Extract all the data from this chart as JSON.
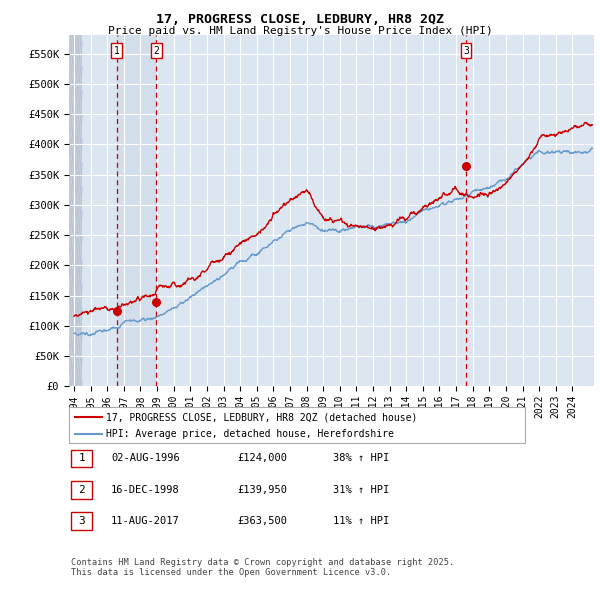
{
  "title": "17, PROGRESS CLOSE, LEDBURY, HR8 2QZ",
  "subtitle": "Price paid vs. HM Land Registry's House Price Index (HPI)",
  "legend_line1": "17, PROGRESS CLOSE, LEDBURY, HR8 2QZ (detached house)",
  "legend_line2": "HPI: Average price, detached house, Herefordshire",
  "sale_color": "#cc0000",
  "hpi_color": "#6699cc",
  "bg_color": "#dce6f1",
  "grid_color": "#ffffff",
  "annotation_border": "#cc0000",
  "vline_color": "#cc0000",
  "xlim_start": 1993.7,
  "xlim_end": 2025.3,
  "ylim_min": 0,
  "ylim_max": 580000,
  "yticks": [
    0,
    50000,
    100000,
    150000,
    200000,
    250000,
    300000,
    350000,
    400000,
    450000,
    500000,
    550000
  ],
  "ytick_labels": [
    "£0",
    "£50K",
    "£100K",
    "£150K",
    "£200K",
    "£250K",
    "£300K",
    "£350K",
    "£400K",
    "£450K",
    "£500K",
    "£550K"
  ],
  "xticks": [
    1994,
    1995,
    1996,
    1997,
    1998,
    1999,
    2000,
    2001,
    2002,
    2003,
    2004,
    2005,
    2006,
    2007,
    2008,
    2009,
    2010,
    2011,
    2012,
    2013,
    2014,
    2015,
    2016,
    2017,
    2018,
    2019,
    2020,
    2021,
    2022,
    2023,
    2024
  ],
  "sales": [
    {
      "year": 1996.58,
      "price": 124000,
      "label": "1"
    },
    {
      "year": 1998.95,
      "price": 139950,
      "label": "2"
    },
    {
      "year": 2017.6,
      "price": 363500,
      "label": "3"
    }
  ],
  "sale1_highlight_x1": 1996.58,
  "sale1_highlight_x2": 1998.95,
  "table_rows": [
    {
      "num": "1",
      "date": "02-AUG-1996",
      "price": "£124,000",
      "change": "38% ↑ HPI"
    },
    {
      "num": "2",
      "date": "16-DEC-1998",
      "price": "£139,950",
      "change": "31% ↑ HPI"
    },
    {
      "num": "3",
      "date": "11-AUG-2017",
      "price": "£363,500",
      "change": "11% ↑ HPI"
    }
  ],
  "footnote": "Contains HM Land Registry data © Crown copyright and database right 2025.\nThis data is licensed under the Open Government Licence v3.0."
}
